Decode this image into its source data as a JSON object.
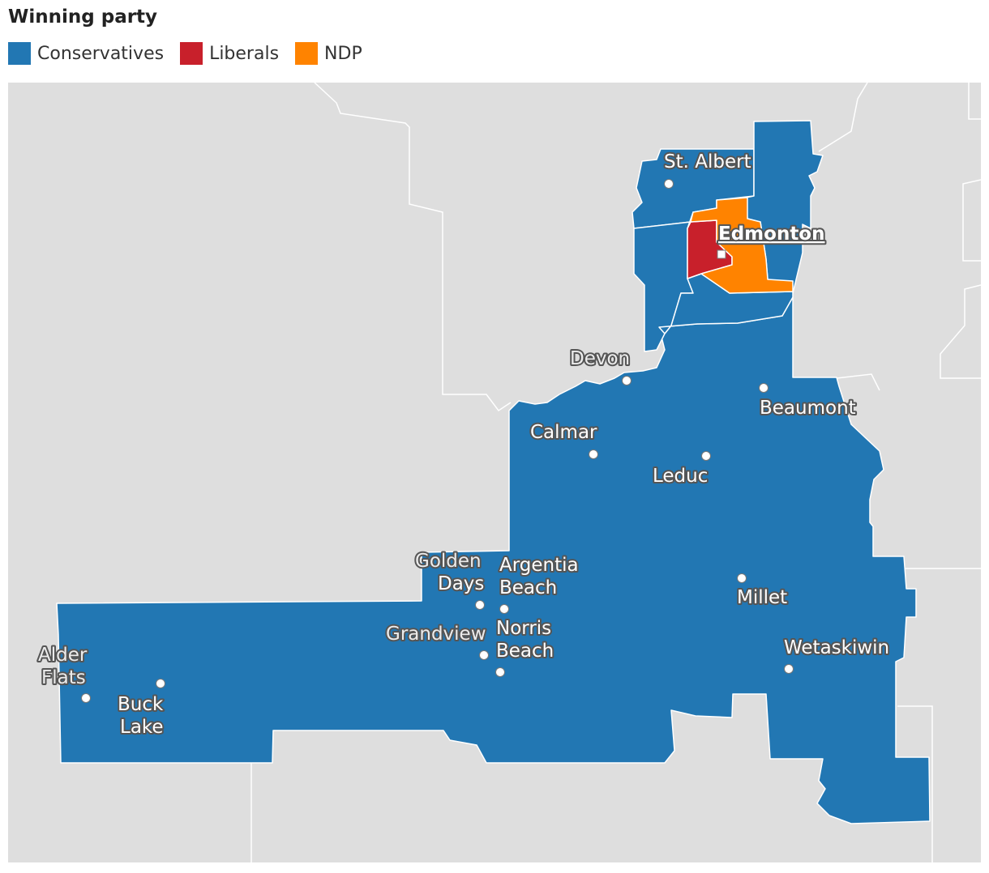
{
  "legend": {
    "title": "Winning party",
    "items": [
      {
        "label": "Conservatives",
        "color": "#2277b3"
      },
      {
        "label": "Liberals",
        "color": "#c8202b"
      },
      {
        "label": "NDP",
        "color": "#ff8300"
      }
    ]
  },
  "map": {
    "background_color": "#dedede",
    "boundary_color": "#ffffff",
    "regions": [
      {
        "party": "Conservatives"
      },
      {
        "party": "Conservatives"
      },
      {
        "party": "Conservatives"
      },
      {
        "party": "Conservatives"
      },
      {
        "party": "Conservatives"
      },
      {
        "party": "Conservatives"
      },
      {
        "party": "Liberals"
      },
      {
        "party": "NDP"
      }
    ],
    "places": {
      "st_albert": "St. Albert",
      "edmonton": "Edmonton",
      "devon": "Devon",
      "beaumont": "Beaumont",
      "calmar": "Calmar",
      "leduc": "Leduc",
      "golden_days_1": "Golden",
      "golden_days_2": "Days",
      "argentia_beach_1": "Argentia",
      "argentia_beach_2": "Beach",
      "millet": "Millet",
      "grandview": "Grandview",
      "norris_beach_1": "Norris",
      "norris_beach_2": "Beach",
      "wetaskiwin": "Wetaskiwin",
      "alder_flats_1": "Alder",
      "alder_flats_2": "Flats",
      "buck_lake_1": "Buck",
      "buck_lake_2": "Lake"
    }
  }
}
